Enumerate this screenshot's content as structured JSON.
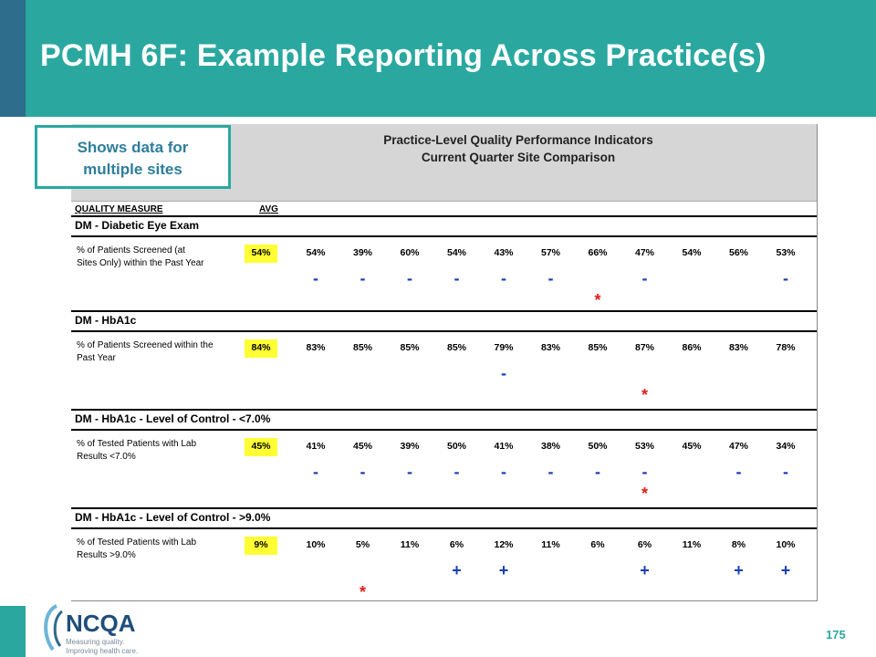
{
  "slide": {
    "title": "PCMH 6F: Example  Reporting Across Practice(s)",
    "page_number": "175",
    "callout": {
      "line1": "Shows data for",
      "line2": "multiple sites"
    },
    "colors": {
      "teal": "#2aa8a0",
      "dark_blue": "#2e6d8c",
      "highlight": "#ffff33",
      "minus": "#1a3fb5",
      "star": "#e0201a"
    }
  },
  "report": {
    "title_line1": "Practice-Level Quality Performance Indicators",
    "title_line2": "Current Quarter Site Comparison",
    "quality_measure_label": "QUALITY MEASURE",
    "avg_label": "AVG",
    "sections": [
      {
        "title": "DM - Diabetic Eye Exam",
        "label_line1": "% of Patients Screened (at",
        "label_line2": "Sites Only) within the Past Year",
        "avg": "54%",
        "values": [
          "54%",
          "39%",
          "60%",
          "54%",
          "43%",
          "57%",
          "66%",
          "47%",
          "54%",
          "56%",
          "53%"
        ],
        "marks_row1": [
          "-",
          "-",
          "-",
          "-",
          "-",
          "-",
          "",
          "-",
          "",
          "",
          "-"
        ],
        "marks_row2": [
          "",
          "",
          "",
          "",
          "",
          "",
          "*",
          "",
          "",
          "",
          ""
        ]
      },
      {
        "title": "DM - HbA1c",
        "label_line1": "% of Patients Screened within the",
        "label_line2": "Past Year",
        "avg": "84%",
        "values": [
          "83%",
          "85%",
          "85%",
          "85%",
          "79%",
          "83%",
          "85%",
          "87%",
          "86%",
          "83%",
          "78%"
        ],
        "marks_row1": [
          "",
          "",
          "",
          "",
          "-",
          "",
          "",
          "",
          "",
          "",
          ""
        ],
        "marks_row2": [
          "",
          "",
          "",
          "",
          "",
          "",
          "",
          "*",
          "",
          "",
          ""
        ]
      },
      {
        "title": "DM - HbA1c - Level of Control - <7.0%",
        "label_line1": "% of Tested Patients with Lab",
        "label_line2": "Results <7.0%",
        "avg": "45%",
        "values": [
          "41%",
          "45%",
          "39%",
          "50%",
          "41%",
          "38%",
          "50%",
          "53%",
          "45%",
          "47%",
          "34%"
        ],
        "marks_row1": [
          "-",
          "-",
          "-",
          "-",
          "-",
          "-",
          "-",
          "-",
          "",
          "-",
          "-"
        ],
        "marks_row2": [
          "",
          "",
          "",
          "",
          "",
          "",
          "",
          "*",
          "",
          "",
          ""
        ]
      },
      {
        "title": "DM - HbA1c - Level of Control - >9.0%",
        "label_line1": "% of Tested Patients with Lab",
        "label_line2": "Results >9.0%",
        "avg": "9%",
        "values": [
          "10%",
          "5%",
          "11%",
          "6%",
          "12%",
          "11%",
          "6%",
          "6%",
          "11%",
          "8%",
          "10%"
        ],
        "marks_row1": [
          "",
          "",
          "",
          "+",
          "+",
          "",
          "",
          "+",
          "",
          "+",
          "+"
        ],
        "marks_row2": [
          "",
          "*",
          "",
          "",
          "",
          "",
          "",
          "",
          "",
          "",
          ""
        ]
      }
    ]
  },
  "logo": {
    "name": "NCQA",
    "tagline1": "Measuring quality.",
    "tagline2": "Improving health care."
  }
}
